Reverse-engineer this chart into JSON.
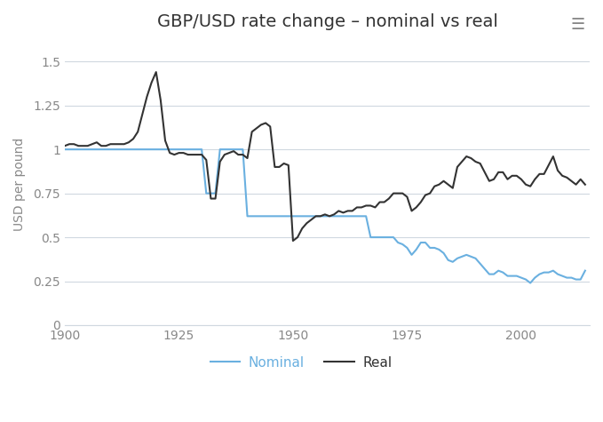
{
  "title": "GBP/USD rate change – nominal vs real",
  "ylabel": "USD per pound",
  "background_color": "#ffffff",
  "nominal_color": "#6ab0e0",
  "real_color": "#333333",
  "ylim": [
    0,
    1.6
  ],
  "yticks": [
    0,
    0.25,
    0.5,
    0.75,
    1.0,
    1.25,
    1.5
  ],
  "xlim": [
    1900,
    2015
  ],
  "xticks": [
    1900,
    1925,
    1950,
    1975,
    2000
  ],
  "nominal_years": [
    1900,
    1901,
    1902,
    1903,
    1904,
    1905,
    1906,
    1907,
    1908,
    1909,
    1910,
    1911,
    1912,
    1913,
    1914,
    1915,
    1916,
    1917,
    1918,
    1919,
    1920,
    1921,
    1922,
    1923,
    1924,
    1925,
    1926,
    1927,
    1928,
    1929,
    1930,
    1931,
    1932,
    1933,
    1934,
    1935,
    1936,
    1937,
    1938,
    1939,
    1940,
    1941,
    1942,
    1943,
    1944,
    1945,
    1946,
    1947,
    1948,
    1949,
    1950,
    1951,
    1952,
    1953,
    1954,
    1955,
    1956,
    1957,
    1958,
    1959,
    1960,
    1961,
    1962,
    1963,
    1964,
    1965,
    1966,
    1967,
    1968,
    1969,
    1970,
    1971,
    1972,
    1973,
    1974,
    1975,
    1976,
    1977,
    1978,
    1979,
    1980,
    1981,
    1982,
    1983,
    1984,
    1985,
    1986,
    1987,
    1988,
    1989,
    1990,
    1991,
    1992,
    1993,
    1994,
    1995,
    1996,
    1997,
    1998,
    1999,
    2000,
    2001,
    2002,
    2003,
    2004,
    2005,
    2006,
    2007,
    2008,
    2009,
    2010,
    2011,
    2012,
    2013,
    2014
  ],
  "nominal_values": [
    1.0,
    1.0,
    1.0,
    1.0,
    1.0,
    1.0,
    1.0,
    1.0,
    1.0,
    1.0,
    1.0,
    1.0,
    1.0,
    1.0,
    1.0,
    1.0,
    1.0,
    1.0,
    1.0,
    1.0,
    1.0,
    1.0,
    1.0,
    1.0,
    1.0,
    1.0,
    1.0,
    1.0,
    1.0,
    1.0,
    1.0,
    0.75,
    0.75,
    0.75,
    1.0,
    1.0,
    1.0,
    1.0,
    1.0,
    1.0,
    0.62,
    0.62,
    0.62,
    0.62,
    0.62,
    0.62,
    0.62,
    0.62,
    0.62,
    0.62,
    0.62,
    0.62,
    0.62,
    0.62,
    0.62,
    0.62,
    0.62,
    0.62,
    0.62,
    0.62,
    0.62,
    0.62,
    0.62,
    0.62,
    0.62,
    0.62,
    0.62,
    0.5,
    0.5,
    0.5,
    0.5,
    0.5,
    0.5,
    0.47,
    0.46,
    0.44,
    0.4,
    0.43,
    0.47,
    0.47,
    0.44,
    0.44,
    0.43,
    0.41,
    0.37,
    0.36,
    0.38,
    0.39,
    0.4,
    0.39,
    0.38,
    0.35,
    0.32,
    0.29,
    0.29,
    0.31,
    0.3,
    0.28,
    0.28,
    0.28,
    0.27,
    0.26,
    0.24,
    0.27,
    0.29,
    0.3,
    0.3,
    0.31,
    0.29,
    0.28,
    0.27,
    0.27,
    0.26,
    0.26,
    0.31
  ],
  "real_years": [
    1900,
    1901,
    1902,
    1903,
    1904,
    1905,
    1906,
    1907,
    1908,
    1909,
    1910,
    1911,
    1912,
    1913,
    1914,
    1915,
    1916,
    1917,
    1918,
    1919,
    1920,
    1921,
    1922,
    1923,
    1924,
    1925,
    1926,
    1927,
    1928,
    1929,
    1930,
    1931,
    1932,
    1933,
    1934,
    1935,
    1936,
    1937,
    1938,
    1939,
    1940,
    1941,
    1942,
    1943,
    1944,
    1945,
    1946,
    1947,
    1948,
    1949,
    1950,
    1951,
    1952,
    1953,
    1954,
    1955,
    1956,
    1957,
    1958,
    1959,
    1960,
    1961,
    1962,
    1963,
    1964,
    1965,
    1966,
    1967,
    1968,
    1969,
    1970,
    1971,
    1972,
    1973,
    1974,
    1975,
    1976,
    1977,
    1978,
    1979,
    1980,
    1981,
    1982,
    1983,
    1984,
    1985,
    1986,
    1987,
    1988,
    1989,
    1990,
    1991,
    1992,
    1993,
    1994,
    1995,
    1996,
    1997,
    1998,
    1999,
    2000,
    2001,
    2002,
    2003,
    2004,
    2005,
    2006,
    2007,
    2008,
    2009,
    2010,
    2011,
    2012,
    2013,
    2014
  ],
  "real_values": [
    1.02,
    1.03,
    1.03,
    1.02,
    1.02,
    1.02,
    1.03,
    1.04,
    1.02,
    1.02,
    1.03,
    1.03,
    1.03,
    1.03,
    1.04,
    1.06,
    1.1,
    1.2,
    1.3,
    1.38,
    1.44,
    1.28,
    1.05,
    0.98,
    0.97,
    0.98,
    0.98,
    0.97,
    0.97,
    0.97,
    0.97,
    0.94,
    0.72,
    0.72,
    0.93,
    0.97,
    0.98,
    0.99,
    0.97,
    0.97,
    0.95,
    1.1,
    1.12,
    1.14,
    1.15,
    1.13,
    0.9,
    0.9,
    0.92,
    0.91,
    0.48,
    0.5,
    0.55,
    0.58,
    0.6,
    0.62,
    0.62,
    0.63,
    0.62,
    0.63,
    0.65,
    0.64,
    0.65,
    0.65,
    0.67,
    0.67,
    0.68,
    0.68,
    0.67,
    0.7,
    0.7,
    0.72,
    0.75,
    0.75,
    0.75,
    0.73,
    0.65,
    0.67,
    0.7,
    0.74,
    0.75,
    0.79,
    0.8,
    0.82,
    0.8,
    0.78,
    0.9,
    0.93,
    0.96,
    0.95,
    0.93,
    0.92,
    0.87,
    0.82,
    0.83,
    0.87,
    0.87,
    0.83,
    0.85,
    0.85,
    0.83,
    0.8,
    0.79,
    0.83,
    0.86,
    0.86,
    0.91,
    0.96,
    0.88,
    0.85,
    0.84,
    0.82,
    0.8,
    0.83,
    0.8
  ],
  "legend_nominal_label": "Nominal",
  "legend_real_label": "Real",
  "line_width": 1.5,
  "grid_color": "#d0d8e0",
  "tick_color": "#888888",
  "title_fontsize": 14,
  "label_fontsize": 10,
  "tick_fontsize": 10
}
